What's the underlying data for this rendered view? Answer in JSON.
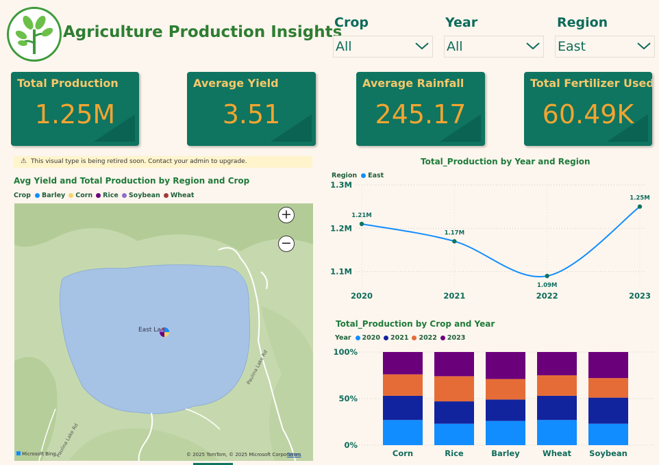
{
  "header": {
    "title": "Agriculture Production Insights"
  },
  "slicers": [
    {
      "label": "Crop",
      "value": "All"
    },
    {
      "label": "Year",
      "value": "All"
    },
    {
      "label": "Region",
      "value": "East"
    }
  ],
  "cards": [
    {
      "label": "Total Production",
      "value": "1.25M"
    },
    {
      "label": "Average Yield",
      "value": "3.51"
    },
    {
      "label": "Average Rainfall",
      "value": "245.17"
    },
    {
      "label": "Total Fertilizer Used",
      "value": "60.49K"
    }
  ],
  "warning": "This visual type is being retired soon. Contact your admin to upgrade.",
  "map_visual": {
    "title": "Avg Yield and Total Production by Region and Crop",
    "legend_title": "Crop",
    "legend": [
      {
        "name": "Barley",
        "color": "#118dff"
      },
      {
        "name": "Corn",
        "color": "#f5d46b"
      },
      {
        "name": "Rice",
        "color": "#6b007b"
      },
      {
        "name": "Soybean",
        "color": "#8e6fcf"
      },
      {
        "name": "Wheat",
        "color": "#a43b3b"
      }
    ],
    "place_label": "East La",
    "attribution": "© 2025 TomTom, © 2025 Microsoft Corporation",
    "terms": "Terms",
    "bing": "Microsoft Bing",
    "road_label_1": "Paulina Lake Rd",
    "road_label_2": "Paulina Lake Rd",
    "zoom_in": "+",
    "zoom_out": "−"
  },
  "chart_data": [
    {
      "type": "line",
      "title": "Total_Production by Year and Region",
      "legend_title": "Region",
      "x": [
        "2020",
        "2021",
        "2022",
        "2023"
      ],
      "series": [
        {
          "name": "East",
          "values": [
            1.21,
            1.17,
            1.09,
            1.25
          ],
          "labels": [
            "1.21M",
            "1.17M",
            "1.09M",
            "1.25M"
          ],
          "color": "#118dff"
        }
      ],
      "yticks": [
        "1.3M",
        "1.2M",
        "1.1M"
      ],
      "ytick_values": [
        1.3,
        1.2,
        1.1
      ],
      "ylim": [
        1.06,
        1.3
      ],
      "grid": true,
      "legend_position": "top-left"
    },
    {
      "type": "bar",
      "stacked": "100%",
      "title": "Total_Production by Crop and Year",
      "legend_title": "Year",
      "categories": [
        "Corn",
        "Rice",
        "Barley",
        "Wheat",
        "Soybean"
      ],
      "series": [
        {
          "name": "2020",
          "color": "#118dff",
          "values": [
            27,
            23,
            26,
            27,
            23
          ]
        },
        {
          "name": "2021",
          "color": "#12239e",
          "values": [
            26,
            24,
            23,
            26,
            28
          ]
        },
        {
          "name": "2022",
          "color": "#e66c37",
          "values": [
            23,
            27,
            22,
            22,
            21
          ]
        },
        {
          "name": "2023",
          "color": "#6b007b",
          "values": [
            24,
            26,
            29,
            25,
            28
          ]
        }
      ],
      "yticks": [
        "100%",
        "50%",
        "0%"
      ],
      "ylim": [
        0,
        100
      ],
      "grid": true,
      "legend_position": "top-left"
    }
  ]
}
